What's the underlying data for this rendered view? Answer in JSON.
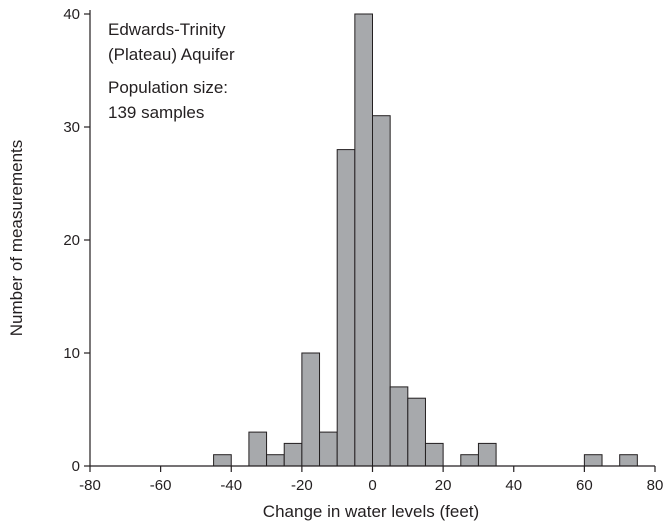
{
  "chart_data": {
    "type": "bar",
    "xlabel": "Change in water levels (feet)",
    "ylabel": "Number of measurements",
    "xlim": [
      -80,
      80
    ],
    "ylim": [
      0,
      40
    ],
    "x_ticks": [
      "-80",
      "-60",
      "-40",
      "-20",
      "0",
      "20",
      "40",
      "60",
      "80"
    ],
    "y_ticks": [
      "0",
      "10",
      "20",
      "30",
      "40"
    ],
    "bin_width": 5,
    "bins": [
      {
        "x0": -45,
        "x1": -40,
        "count": 1
      },
      {
        "x0": -35,
        "x1": -30,
        "count": 3
      },
      {
        "x0": -30,
        "x1": -25,
        "count": 1
      },
      {
        "x0": -25,
        "x1": -20,
        "count": 2
      },
      {
        "x0": -20,
        "x1": -15,
        "count": 10
      },
      {
        "x0": -15,
        "x1": -10,
        "count": 3
      },
      {
        "x0": -10,
        "x1": -5,
        "count": 28
      },
      {
        "x0": -5,
        "x1": 0,
        "count": 40
      },
      {
        "x0": 0,
        "x1": 5,
        "count": 31
      },
      {
        "x0": 5,
        "x1": 10,
        "count": 7
      },
      {
        "x0": 10,
        "x1": 15,
        "count": 6
      },
      {
        "x0": 15,
        "x1": 20,
        "count": 2
      },
      {
        "x0": 25,
        "x1": 30,
        "count": 1
      },
      {
        "x0": 30,
        "x1": 35,
        "count": 2
      },
      {
        "x0": 60,
        "x1": 65,
        "count": 1
      },
      {
        "x0": 70,
        "x1": 75,
        "count": 1
      }
    ],
    "annotations": {
      "line1": "Edwards-Trinity",
      "line2": "(Plateau) Aquifer",
      "line3": "Population size:",
      "line4": "139 samples"
    },
    "bar_color": "#a7a9ac",
    "edge_color": "#231f20"
  }
}
